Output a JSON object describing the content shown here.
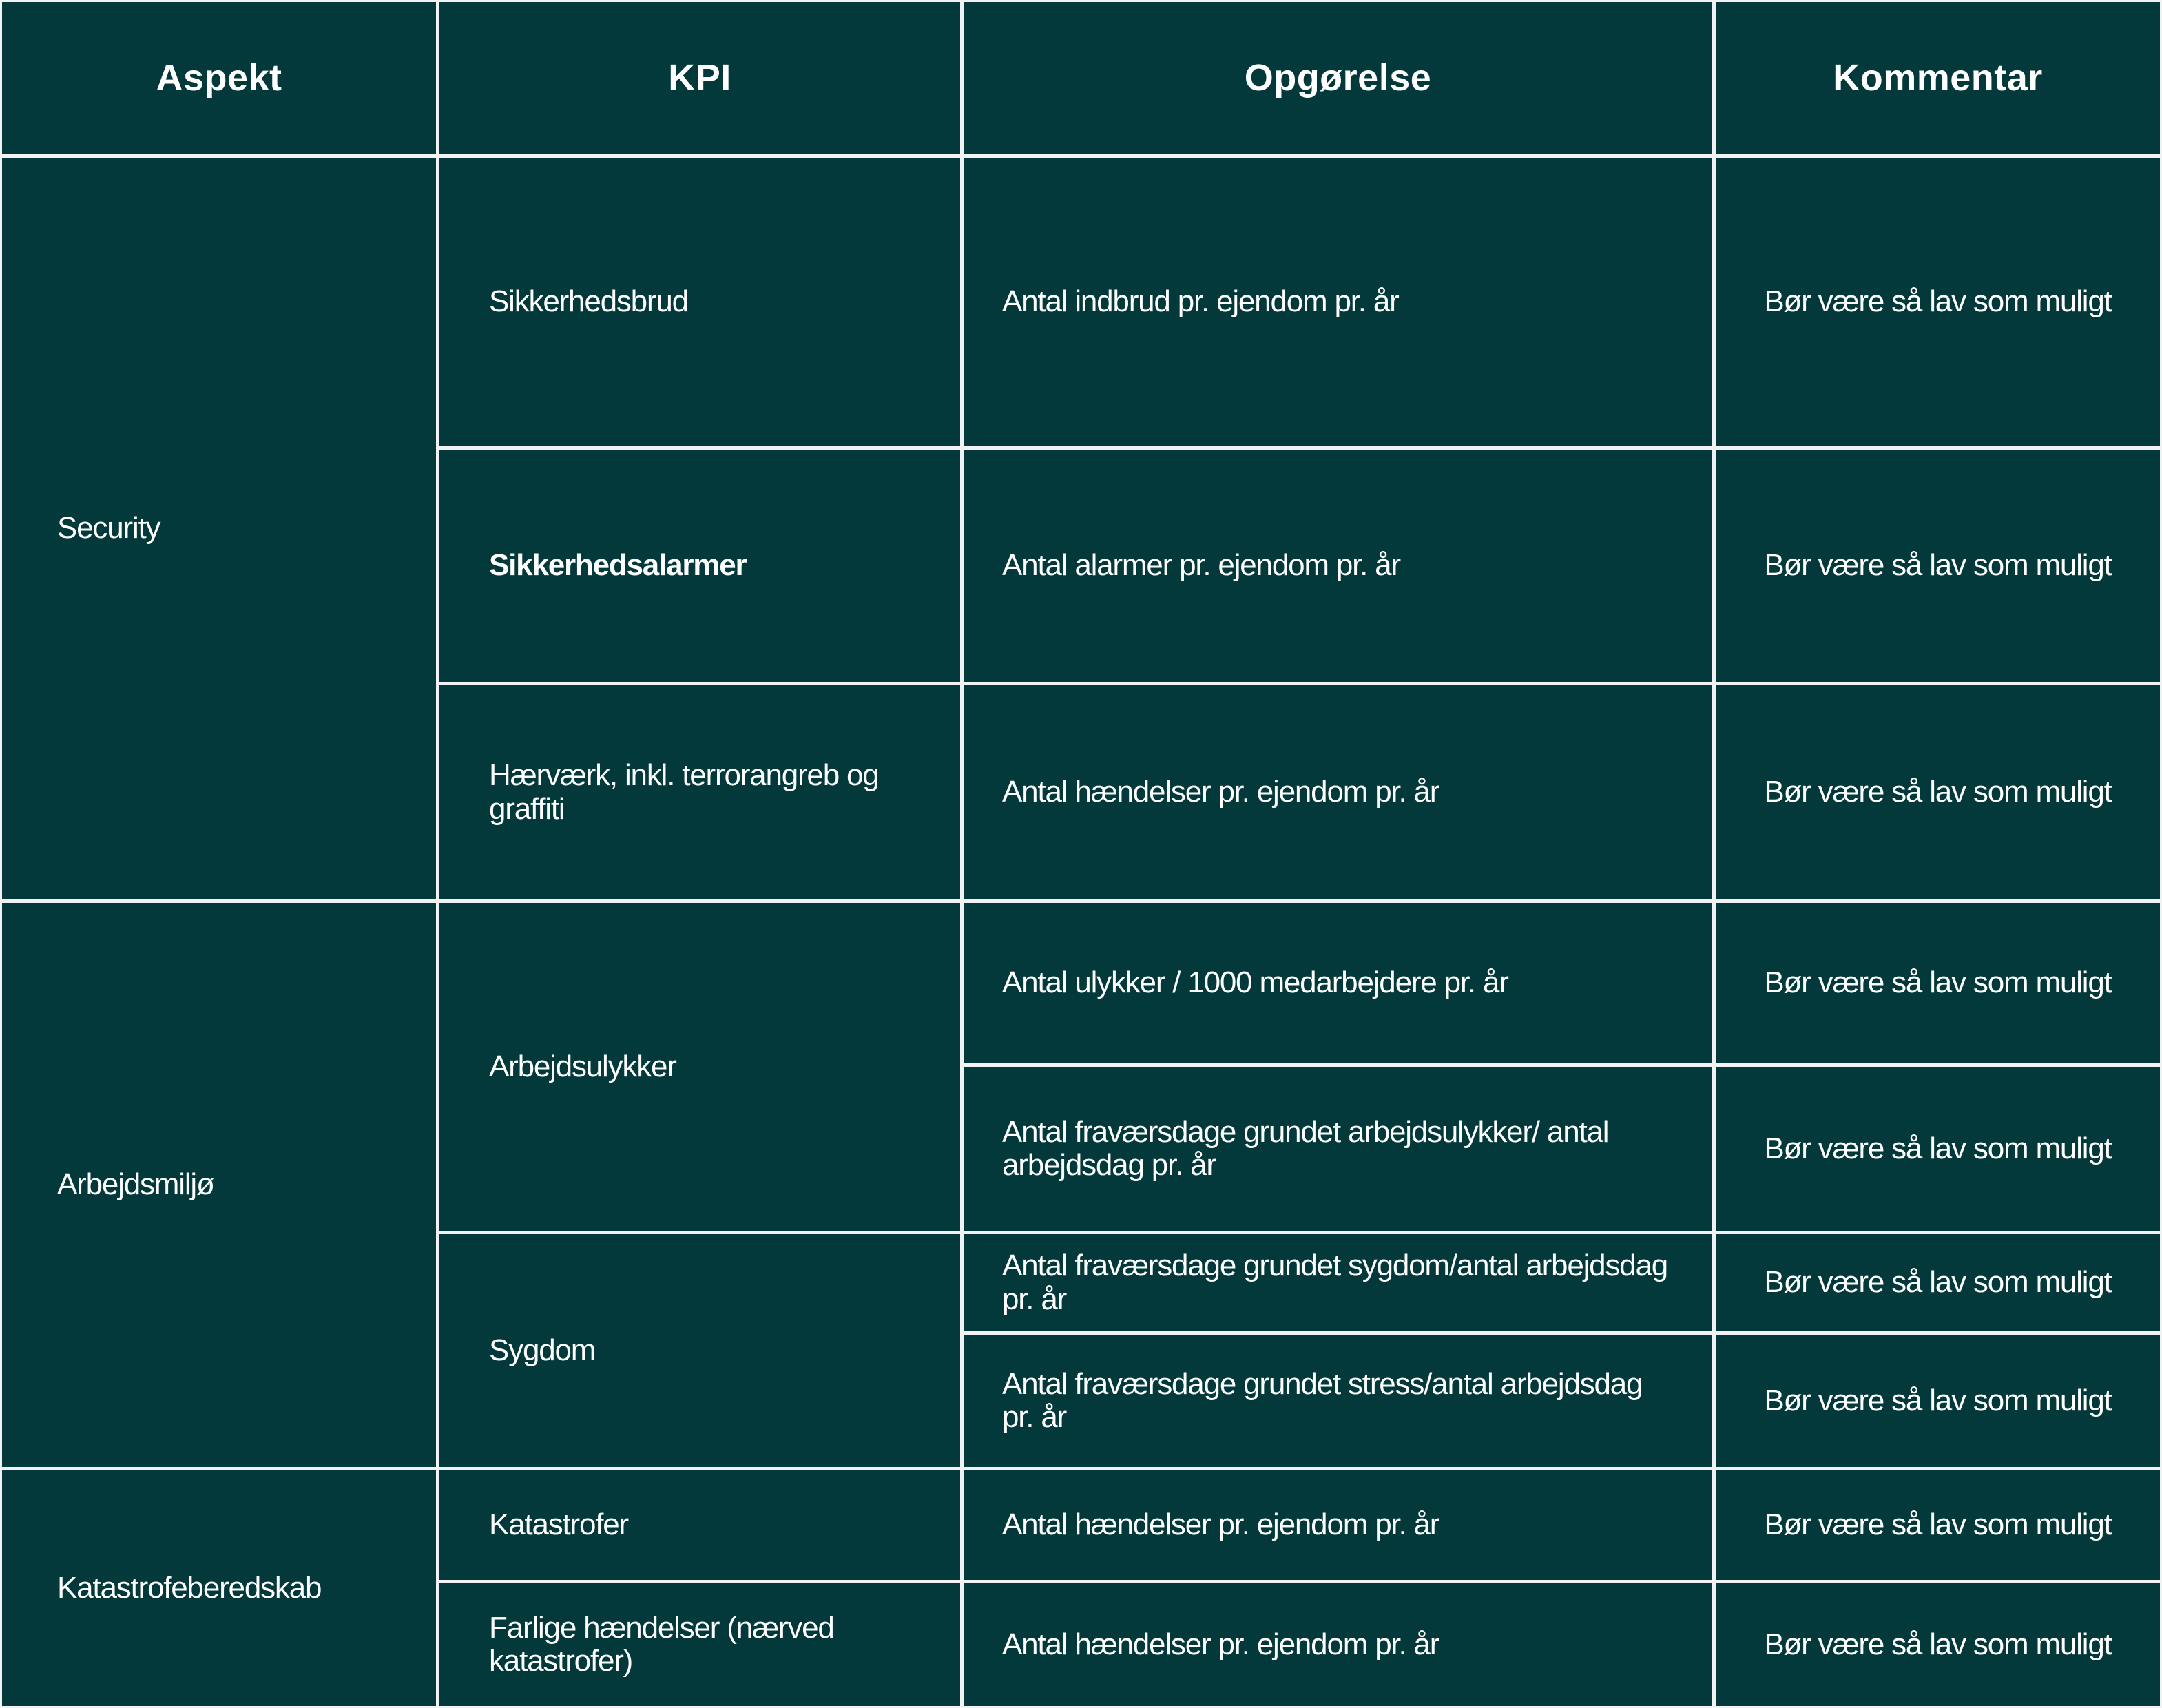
{
  "header": [
    "Aspekt",
    "KPI",
    "Opgørelse",
    "Kommentar"
  ],
  "aspects": [
    "Security",
    "Arbejdsmiljø",
    "Katastrofeberedskab"
  ],
  "kpis": [
    "Sikkerhedsbrud",
    "Sikkerhedsalarmer",
    "Hærværk, inkl. terrorangreb og graffiti",
    "Arbejdsulykker",
    "Sygdom",
    "Katastrofer",
    "Farlige hændelser (nærved katastrofer)"
  ],
  "opgoerelse": [
    "Antal indbrud pr. ejendom pr. år",
    "Antal alarmer pr. ejendom pr. år",
    "Antal hændelser pr. ejendom pr. år",
    "Antal ulykker / 1000 medarbejdere pr. år",
    "Antal fraværsdage grundet arbejdsulykker/ antal arbejdsdag pr. år",
    "Antal fraværsdage grundet sygdom/antal arbejdsdag pr. år",
    "Antal fraværsdage grundet stress/antal arbejdsdag pr. år",
    "Antal hændelser pr. ejendom pr. år",
    "Antal hændelser pr. ejendom pr. år"
  ],
  "kommentar": [
    "Bør være så lav som muligt",
    "Bør være så lav som muligt",
    "Bør være så lav som muligt",
    "Bør være så lav som muligt",
    "Bør være så lav som muligt",
    "Bør være så lav som muligt",
    "Bør være så lav som muligt",
    "Bør være så lav som muligt",
    "Bør være så lav som muligt"
  ],
  "colors": {
    "cell_background": "#03393a",
    "text": "#ffffff",
    "grid_lines": "#f2f2f2"
  }
}
